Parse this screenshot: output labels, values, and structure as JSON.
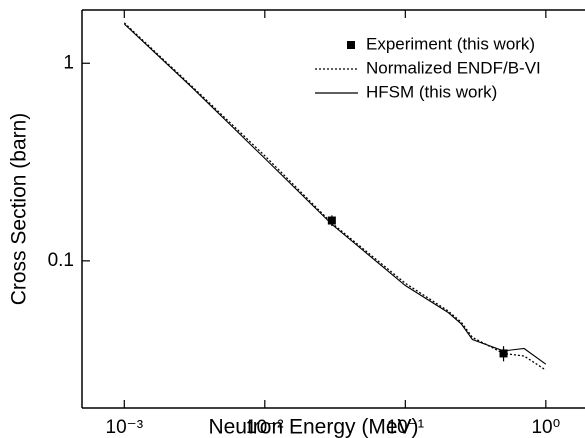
{
  "chart_data": {
    "type": "line",
    "x_label": "Neutron Energy (MeV)",
    "y_label": "Cross Section (barn)",
    "xscale": "log",
    "yscale": "log",
    "xlim": [
      0.0005,
      1.9
    ],
    "ylim": [
      0.018,
      1.86
    ],
    "xticks": [
      {
        "value": 0.001,
        "label": "10⁻³"
      },
      {
        "value": 0.01,
        "label": "10⁻²"
      },
      {
        "value": 0.1,
        "label": "10⁻¹"
      },
      {
        "value": 1,
        "label": "10⁰"
      }
    ],
    "yticks": [
      0.1,
      1
    ],
    "legend": "upper right",
    "series": [
      {
        "name": "Experiment (this work)",
        "kind": "errorbar",
        "color": "#000000",
        "x": [
          0.03,
          0.5
        ],
        "values": [
          0.16,
          0.034
        ],
        "errors": [
          0.01,
          0.003
        ]
      },
      {
        "name": "Normalized ENDF/B-VI",
        "kind": "dotted",
        "color": "#000000",
        "x": [
          0.001,
          0.003,
          0.01,
          0.03,
          0.1,
          0.2,
          0.25,
          0.3,
          0.5,
          0.7,
          1.0
        ],
        "values": [
          1.6,
          0.77,
          0.34,
          0.155,
          0.077,
          0.056,
          0.049,
          0.041,
          0.034,
          0.033,
          0.028
        ]
      },
      {
        "name": "HFSM (this work)",
        "kind": "solid",
        "color": "#000000",
        "x": [
          0.001,
          0.003,
          0.01,
          0.03,
          0.1,
          0.2,
          0.25,
          0.3,
          0.5,
          0.7,
          1.0
        ],
        "values": [
          1.58,
          0.76,
          0.33,
          0.153,
          0.075,
          0.055,
          0.048,
          0.04,
          0.035,
          0.036,
          0.03
        ]
      }
    ]
  }
}
